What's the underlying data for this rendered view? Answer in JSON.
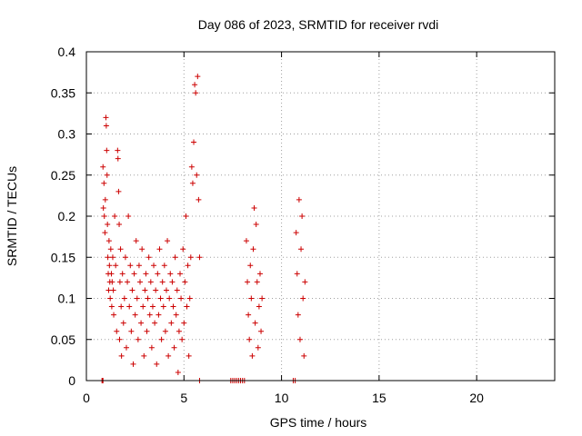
{
  "chart_data": {
    "type": "scatter",
    "title": "Day 086 of 2023, SRMTID for receiver rvdi",
    "xlabel": "GPS time / hours",
    "ylabel": "SRMTID / TECUs",
    "xlim": [
      0,
      24
    ],
    "ylim": [
      0,
      0.4
    ],
    "x_ticks": [
      0,
      5,
      10,
      15,
      20
    ],
    "x_tick_labels": [
      "0",
      "5",
      "10",
      "15",
      "20"
    ],
    "y_ticks": [
      0,
      0.05,
      0.1,
      0.15,
      0.2,
      0.25,
      0.3,
      0.35,
      0.4
    ],
    "y_tick_labels": [
      "0",
      "0.05",
      "0.1",
      "0.15",
      "0.2",
      "0.25",
      "0.3",
      "0.35",
      "0.4"
    ],
    "grid": true,
    "marker": "+",
    "series": [
      {
        "color": "#cc0000",
        "points": [
          [
            0.8,
            0.0
          ],
          [
            0.82,
            0.0
          ],
          [
            0.85,
            0.0
          ],
          [
            0.85,
            0.26
          ],
          [
            0.87,
            0.21
          ],
          [
            0.9,
            0.24
          ],
          [
            0.92,
            0.2
          ],
          [
            0.95,
            0.18
          ],
          [
            0.97,
            0.22
          ],
          [
            1.0,
            0.32
          ],
          [
            1.02,
            0.31
          ],
          [
            1.04,
            0.28
          ],
          [
            1.06,
            0.25
          ],
          [
            1.08,
            0.19
          ],
          [
            1.1,
            0.15
          ],
          [
            1.12,
            0.13
          ],
          [
            1.14,
            0.11
          ],
          [
            1.16,
            0.17
          ],
          [
            1.18,
            0.14
          ],
          [
            1.2,
            0.12
          ],
          [
            1.22,
            0.1
          ],
          [
            1.25,
            0.16
          ],
          [
            1.28,
            0.13
          ],
          [
            1.3,
            0.09
          ],
          [
            1.32,
            0.12
          ],
          [
            1.35,
            0.15
          ],
          [
            1.38,
            0.11
          ],
          [
            1.4,
            0.08
          ],
          [
            1.45,
            0.2
          ],
          [
            1.5,
            0.14
          ],
          [
            1.55,
            0.06
          ],
          [
            1.6,
            0.28
          ],
          [
            1.62,
            0.27
          ],
          [
            1.65,
            0.23
          ],
          [
            1.68,
            0.19
          ],
          [
            1.7,
            0.05
          ],
          [
            1.72,
            0.12
          ],
          [
            1.75,
            0.16
          ],
          [
            1.78,
            0.09
          ],
          [
            1.8,
            0.03
          ],
          [
            1.85,
            0.13
          ],
          [
            1.9,
            0.07
          ],
          [
            1.95,
            0.1
          ],
          [
            2.0,
            0.15
          ],
          [
            2.05,
            0.04
          ],
          [
            2.1,
            0.12
          ],
          [
            2.15,
            0.2
          ],
          [
            2.2,
            0.09
          ],
          [
            2.25,
            0.14
          ],
          [
            2.3,
            0.06
          ],
          [
            2.35,
            0.11
          ],
          [
            2.4,
            0.02
          ],
          [
            2.45,
            0.13
          ],
          [
            2.5,
            0.08
          ],
          [
            2.55,
            0.17
          ],
          [
            2.6,
            0.1
          ],
          [
            2.65,
            0.05
          ],
          [
            2.7,
            0.14
          ],
          [
            2.75,
            0.12
          ],
          [
            2.8,
            0.07
          ],
          [
            2.85,
            0.16
          ],
          [
            2.9,
            0.09
          ],
          [
            2.95,
            0.03
          ],
          [
            3.0,
            0.11
          ],
          [
            3.05,
            0.13
          ],
          [
            3.1,
            0.06
          ],
          [
            3.15,
            0.1
          ],
          [
            3.2,
            0.15
          ],
          [
            3.25,
            0.08
          ],
          [
            3.3,
            0.12
          ],
          [
            3.35,
            0.04
          ],
          [
            3.4,
            0.09
          ],
          [
            3.45,
            0.14
          ],
          [
            3.5,
            0.07
          ],
          [
            3.55,
            0.11
          ],
          [
            3.6,
            0.02
          ],
          [
            3.65,
            0.13
          ],
          [
            3.7,
            0.08
          ],
          [
            3.75,
            0.16
          ],
          [
            3.8,
            0.1
          ],
          [
            3.85,
            0.05
          ],
          [
            3.9,
            0.12
          ],
          [
            3.95,
            0.09
          ],
          [
            4.0,
            0.14
          ],
          [
            4.05,
            0.06
          ],
          [
            4.1,
            0.11
          ],
          [
            4.15,
            0.17
          ],
          [
            4.2,
            0.03
          ],
          [
            4.25,
            0.1
          ],
          [
            4.3,
            0.13
          ],
          [
            4.35,
            0.07
          ],
          [
            4.4,
            0.12
          ],
          [
            4.45,
            0.09
          ],
          [
            4.5,
            0.04
          ],
          [
            4.55,
            0.15
          ],
          [
            4.6,
            0.08
          ],
          [
            4.65,
            0.11
          ],
          [
            4.7,
            0.01
          ],
          [
            4.75,
            0.06
          ],
          [
            4.8,
            0.13
          ],
          [
            4.85,
            0.1
          ],
          [
            4.9,
            0.05
          ],
          [
            4.95,
            0.16
          ],
          [
            5.0,
            0.07
          ],
          [
            5.05,
            0.12
          ],
          [
            5.1,
            0.2
          ],
          [
            5.15,
            0.09
          ],
          [
            5.2,
            0.14
          ],
          [
            5.25,
            0.03
          ],
          [
            5.3,
            0.1
          ],
          [
            5.35,
            0.15
          ],
          [
            5.4,
            0.26
          ],
          [
            5.45,
            0.24
          ],
          [
            5.5,
            0.29
          ],
          [
            5.55,
            0.36
          ],
          [
            5.6,
            0.35
          ],
          [
            5.65,
            0.25
          ],
          [
            5.7,
            0.37
          ],
          [
            5.75,
            0.22
          ],
          [
            5.8,
            0.15
          ],
          [
            5.8,
            0.0
          ],
          [
            7.4,
            0.0
          ],
          [
            7.5,
            0.0
          ],
          [
            7.6,
            0.0
          ],
          [
            7.7,
            0.0
          ],
          [
            7.8,
            0.0
          ],
          [
            7.9,
            0.0
          ],
          [
            8.0,
            0.0
          ],
          [
            8.1,
            0.0
          ],
          [
            8.2,
            0.17
          ],
          [
            8.25,
            0.12
          ],
          [
            8.3,
            0.08
          ],
          [
            8.35,
            0.05
          ],
          [
            8.4,
            0.14
          ],
          [
            8.45,
            0.1
          ],
          [
            8.5,
            0.03
          ],
          [
            8.55,
            0.16
          ],
          [
            8.6,
            0.21
          ],
          [
            8.65,
            0.07
          ],
          [
            8.7,
            0.19
          ],
          [
            8.75,
            0.12
          ],
          [
            8.8,
            0.04
          ],
          [
            8.85,
            0.09
          ],
          [
            8.9,
            0.13
          ],
          [
            8.95,
            0.06
          ],
          [
            9.0,
            0.1
          ],
          [
            10.6,
            0.0
          ],
          [
            10.7,
            0.0
          ],
          [
            10.75,
            0.18
          ],
          [
            10.8,
            0.13
          ],
          [
            10.85,
            0.08
          ],
          [
            10.9,
            0.22
          ],
          [
            10.95,
            0.05
          ],
          [
            11.0,
            0.16
          ],
          [
            11.05,
            0.2
          ],
          [
            11.1,
            0.1
          ],
          [
            11.15,
            0.03
          ],
          [
            11.2,
            0.12
          ]
        ]
      }
    ]
  }
}
